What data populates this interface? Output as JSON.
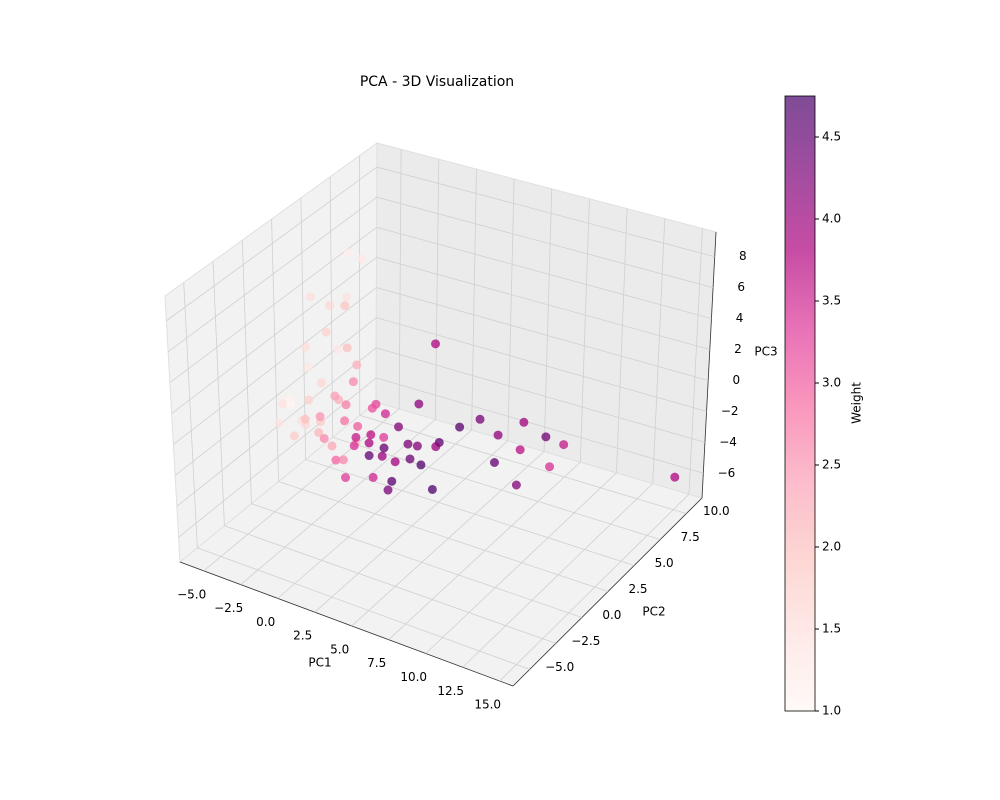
{
  "chart_data": {
    "type": "scatter3d",
    "title": "PCA - 3D Visualization",
    "xlabel": "PC1",
    "ylabel": "PC2",
    "zlabel": "PC3",
    "xlim": [
      -6.6,
      15.9
    ],
    "ylim": [
      -6.6,
      11.5
    ],
    "zlim": [
      -7.6,
      9.6
    ],
    "xticks": [
      {
        "value": -5,
        "label": "−5.0"
      },
      {
        "value": -2.5,
        "label": "−2.5"
      },
      {
        "value": 0,
        "label": "0.0"
      },
      {
        "value": 2.5,
        "label": "2.5"
      },
      {
        "value": 5,
        "label": "5.0"
      },
      {
        "value": 7.5,
        "label": "7.5"
      },
      {
        "value": 10,
        "label": "10.0"
      },
      {
        "value": 12.5,
        "label": "12.5"
      },
      {
        "value": 15,
        "label": "15.0"
      }
    ],
    "yticks": [
      {
        "value": -5,
        "label": "−5.0"
      },
      {
        "value": -2.5,
        "label": "−2.5"
      },
      {
        "value": 0,
        "label": "0.0"
      },
      {
        "value": 2.5,
        "label": "2.5"
      },
      {
        "value": 5,
        "label": "5.0"
      },
      {
        "value": 7.5,
        "label": "7.5"
      },
      {
        "value": 10,
        "label": "10.0"
      }
    ],
    "zticks": [
      {
        "value": -6,
        "label": "−6"
      },
      {
        "value": -4,
        "label": "−4"
      },
      {
        "value": -2,
        "label": "−2"
      },
      0,
      2,
      4,
      6,
      8
    ],
    "grid": true,
    "colorbar_label": "Weight",
    "clim": [
      1,
      4.75
    ],
    "cticks": [
      {
        "value": 1,
        "label": "1.0"
      },
      {
        "value": 1.5,
        "label": "1.5"
      },
      {
        "value": 2,
        "label": "2.0"
      },
      {
        "value": 2.5,
        "label": "2.5"
      },
      {
        "value": 3,
        "label": "3.0"
      },
      {
        "value": 3.5,
        "label": "3.5"
      },
      {
        "value": 4,
        "label": "4.0"
      },
      {
        "value": 4.5,
        "label": "4.5"
      }
    ],
    "colormap": [
      "#fff7f3",
      "#fde0dd",
      "#fcc5c0",
      "#fa9fb5",
      "#f768a1",
      "#dd3497",
      "#ae017e",
      "#7a0177",
      "#49006a"
    ],
    "x": [
      -2,
      -1.5,
      -3,
      -1,
      -2.5,
      -1.5,
      -2,
      -3,
      -1,
      -2,
      0,
      3,
      -4,
      -4.5,
      -3.5,
      -3,
      -4,
      -3.5,
      -3,
      -2.5,
      -2.5,
      -2,
      -2,
      -2,
      -1.5,
      -1.5,
      -1,
      -1,
      -1,
      -0.5,
      -0.5,
      0,
      0,
      0,
      0.5,
      0.5,
      1,
      1,
      1,
      1.5,
      1.5,
      2,
      2,
      2,
      2.5,
      2.5,
      3,
      3,
      3,
      3.5,
      3.5,
      4,
      4,
      4.5,
      0,
      1,
      -1,
      2,
      -2,
      -3,
      0,
      1,
      5,
      6,
      6.5,
      7,
      7.5,
      8,
      9,
      9.5,
      8.5,
      10,
      5,
      15
    ],
    "y": [
      3,
      3.5,
      1,
      1.5,
      2,
      2,
      1,
      0.5,
      1.5,
      2,
      1,
      4,
      0,
      1,
      -1,
      0,
      2,
      1,
      -1,
      0,
      1,
      -1,
      0.5,
      2,
      -0.5,
      1,
      0,
      2,
      -1,
      0.5,
      1.5,
      0,
      1,
      -1,
      2,
      0,
      1,
      -0.5,
      2,
      0,
      1.5,
      0.5,
      -0.5,
      2,
      1,
      0,
      1.5,
      0,
      2.5,
      1,
      2,
      1,
      3,
      2,
      2,
      1,
      1,
      1,
      -2,
      -2,
      -2,
      -1.5,
      3.5,
      4,
      5,
      4,
      6,
      5,
      6,
      7,
      4,
      5,
      1,
      10
    ],
    "z": [
      8.5,
      8,
      6.5,
      6.8,
      5.5,
      5.8,
      4.5,
      3.5,
      3.5,
      2.8,
      3,
      3.5,
      0,
      -1,
      0.5,
      -1,
      1,
      -2,
      1,
      0.5,
      -1.5,
      0,
      1.5,
      -0.5,
      -1,
      0.5,
      -2,
      1,
      0.5,
      -0.5,
      -2.5,
      1,
      -1,
      -2,
      0,
      -1.5,
      0.5,
      -0.5,
      -2,
      -1,
      0,
      -2,
      0,
      -1,
      -2.5,
      -1,
      -1.5,
      -3,
      0.5,
      -2,
      -3,
      -1,
      -2,
      -1.5,
      -3.5,
      -4,
      -3.5,
      -4.5,
      -0.5,
      0,
      0,
      -2.5,
      -1,
      -0.5,
      -2,
      -3,
      -1.5,
      -2.5,
      -2,
      -3,
      -4,
      -3,
      -3.5,
      -5.5
    ],
    "color_values": [
      1.2,
      1.3,
      1.5,
      1.4,
      1.6,
      1.9,
      1.7,
      1.5,
      2,
      1.3,
      2.2,
      3.8,
      1.2,
      1,
      1.4,
      1.5,
      1.3,
      1.6,
      1.1,
      1.7,
      1.8,
      2,
      1.6,
      2.2,
      2.1,
      2.4,
      2.3,
      2.6,
      2.5,
      2.8,
      2,
      2.7,
      3,
      2.9,
      3.2,
      3.4,
      3.1,
      3.6,
      3.3,
      3.8,
      3.5,
      4,
      3.7,
      4.2,
      3.9,
      4.5,
      4.3,
      4.6,
      4.1,
      4.4,
      4.7,
      4.2,
      4.6,
      4,
      4.5,
      3.5,
      2.6,
      4.3,
      1.8,
      1.4,
      2.6,
      3.3,
      4.6,
      4.3,
      4.1,
      4.5,
      3.9,
      3.7,
      4.4,
      3.6,
      4.2,
      3.4,
      4.7,
      3.8
    ]
  }
}
